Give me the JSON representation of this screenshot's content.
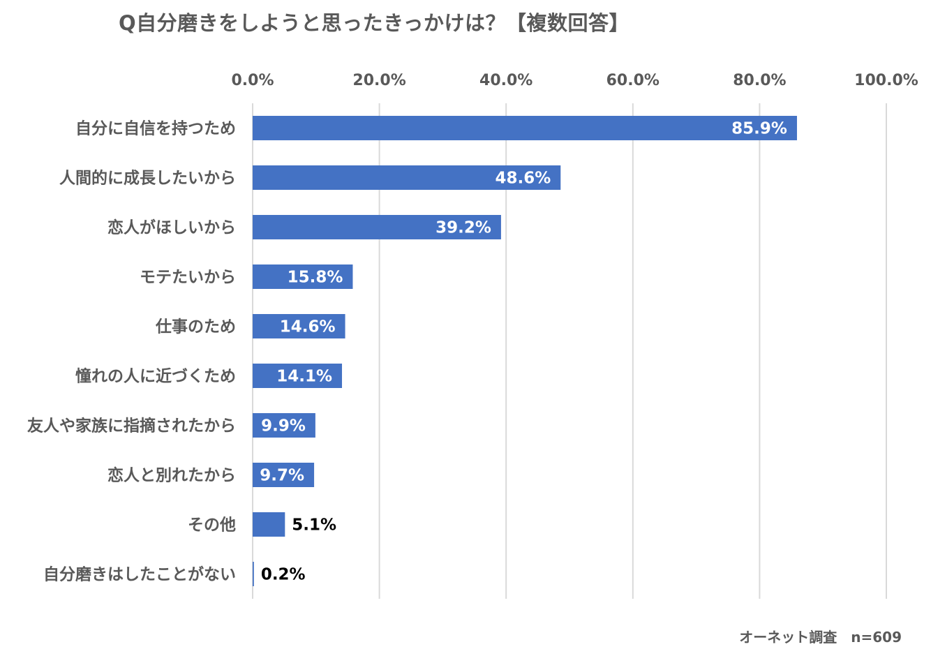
{
  "chart_data": {
    "type": "bar",
    "orientation": "horizontal",
    "title": "Q自分磨きをしようと思ったきっかけは？【複数回答】",
    "categories": [
      "自分に自信を持つため",
      "人間的に成長したいから",
      "恋人がほしいから",
      "モテたいから",
      "仕事のため",
      "憧れの人に近づくため",
      "友人や家族に指摘されたから",
      "恋人と別れたから",
      "その他",
      "自分磨きはしたことがない"
    ],
    "values": [
      85.9,
      48.6,
      39.2,
      15.8,
      14.6,
      14.1,
      9.9,
      9.7,
      5.1,
      0.2
    ],
    "value_labels": [
      "85.9%",
      "48.6%",
      "39.2%",
      "15.8%",
      "14.6%",
      "14.1%",
      "9.9%",
      "9.7%",
      "5.1%",
      "0.2%"
    ],
    "xlim": [
      0,
      100
    ],
    "x_ticks": [
      0,
      20,
      40,
      60,
      80,
      100
    ],
    "x_tick_labels": [
      "0.0%",
      "20.0%",
      "40.0%",
      "60.0%",
      "80.0%",
      "100.0%"
    ],
    "x_axis_position": "top",
    "grid": true,
    "legend": "none",
    "xlabel": "",
    "ylabel": "",
    "bar_color": "#4472C4",
    "grid_color": "#D9D9D9",
    "label_inside_color": "#FFFFFF",
    "label_outside_color": "#000000",
    "note": "オーネット調査　n=609"
  }
}
